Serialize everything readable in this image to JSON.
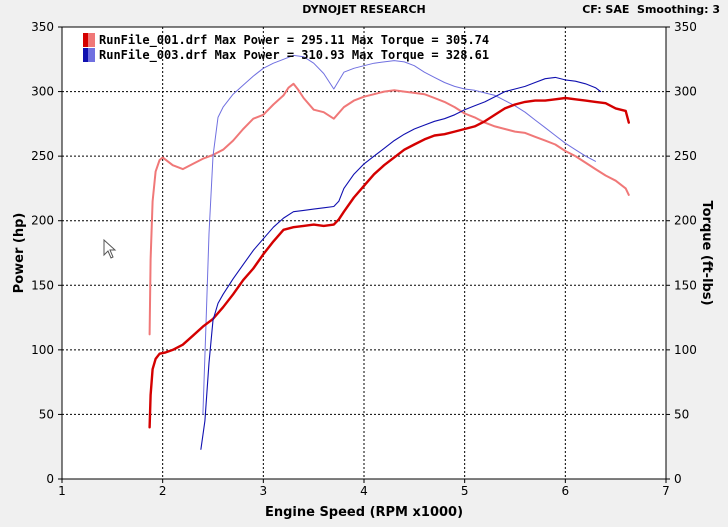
{
  "header": {
    "title": "DYNOJET RESEARCH",
    "cf_label": "CF: SAE",
    "smoothing_label": "Smoothing: 3"
  },
  "chart_data": {
    "type": "line",
    "xlabel": "Engine Speed (RPM x1000)",
    "ylabel": "Power (hp)",
    "y2label": "Torque (ft-lbs)",
    "xlim": [
      1,
      7
    ],
    "ylim": [
      0,
      350
    ],
    "y2lim": [
      0,
      350
    ],
    "x_ticks": [
      "1",
      "2",
      "3",
      "4",
      "5",
      "6",
      "7"
    ],
    "y_ticks": [
      "0",
      "50",
      "100",
      "150",
      "200",
      "250",
      "300",
      "350"
    ],
    "y2_ticks": [
      "0",
      "50",
      "100",
      "150",
      "200",
      "250",
      "300",
      "350"
    ],
    "grid": true,
    "legend": [
      "RunFile_001.drf Max Power = 295.11 Max Torque = 305.74",
      "RunFile_003.drf Max Power = 310.93 Max Torque = 328.61"
    ],
    "series": [
      {
        "name": "RunFile_001.drf Power",
        "run": "RunFile_001.drf",
        "measure": "power",
        "axis": "left",
        "color": "#d40000",
        "width": 2.4,
        "x": [
          1.87,
          1.88,
          1.9,
          1.93,
          1.97,
          2.03,
          2.1,
          2.2,
          2.3,
          2.4,
          2.5,
          2.6,
          2.7,
          2.8,
          2.9,
          3.0,
          3.1,
          3.2,
          3.3,
          3.4,
          3.5,
          3.6,
          3.7,
          3.75,
          3.8,
          3.9,
          4.0,
          4.1,
          4.2,
          4.3,
          4.4,
          4.5,
          4.6,
          4.7,
          4.8,
          4.9,
          5.0,
          5.1,
          5.2,
          5.3,
          5.4,
          5.5,
          5.6,
          5.7,
          5.8,
          5.9,
          6.0,
          6.1,
          6.2,
          6.3,
          6.4,
          6.5,
          6.6,
          6.63
        ],
        "y": [
          40,
          65,
          85,
          93,
          97,
          98,
          100,
          104,
          111,
          118,
          124,
          133,
          143,
          154,
          163,
          174,
          184,
          193,
          195,
          196,
          197,
          196,
          197,
          201,
          207,
          218,
          227,
          236,
          243,
          249,
          255,
          259,
          263,
          266,
          267,
          269,
          271,
          273,
          277,
          282,
          287,
          290,
          292,
          293,
          293,
          294,
          295,
          294,
          293,
          292,
          291,
          287,
          285,
          276
        ]
      },
      {
        "name": "RunFile_001.drf Torque",
        "run": "RunFile_001.drf",
        "measure": "torque",
        "axis": "right",
        "color": "#f07878",
        "width": 2,
        "x": [
          1.87,
          1.88,
          1.9,
          1.93,
          1.97,
          2.0,
          2.05,
          2.1,
          2.2,
          2.3,
          2.4,
          2.5,
          2.6,
          2.7,
          2.8,
          2.9,
          3.0,
          3.1,
          3.2,
          3.25,
          3.3,
          3.35,
          3.4,
          3.5,
          3.6,
          3.7,
          3.8,
          3.9,
          4.0,
          4.1,
          4.2,
          4.3,
          4.4,
          4.5,
          4.6,
          4.7,
          4.8,
          4.9,
          5.0,
          5.1,
          5.2,
          5.3,
          5.4,
          5.5,
          5.6,
          5.7,
          5.8,
          5.9,
          6.0,
          6.1,
          6.2,
          6.3,
          6.4,
          6.5,
          6.6,
          6.63
        ],
        "y": [
          112,
          170,
          215,
          238,
          247,
          249,
          246,
          243,
          240,
          244,
          248,
          251,
          255,
          262,
          271,
          279,
          282,
          290,
          297,
          303,
          306,
          301,
          295,
          286,
          284,
          279,
          288,
          293,
          296,
          298,
          300,
          301,
          300,
          299,
          298,
          295,
          292,
          288,
          283,
          280,
          276,
          273,
          271,
          269,
          268,
          265,
          262,
          259,
          254,
          250,
          245,
          240,
          235,
          231,
          225,
          220
        ]
      },
      {
        "name": "RunFile_003.drf Power",
        "run": "RunFile_003.drf",
        "measure": "power",
        "axis": "left",
        "color": "#1010b0",
        "width": 1.1,
        "x": [
          2.38,
          2.42,
          2.46,
          2.5,
          2.55,
          2.6,
          2.7,
          2.8,
          2.9,
          3.0,
          3.1,
          3.2,
          3.3,
          3.4,
          3.5,
          3.6,
          3.7,
          3.75,
          3.8,
          3.9,
          4.0,
          4.1,
          4.2,
          4.3,
          4.4,
          4.5,
          4.6,
          4.7,
          4.8,
          4.9,
          5.0,
          5.1,
          5.2,
          5.3,
          5.4,
          5.5,
          5.6,
          5.7,
          5.8,
          5.9,
          6.0,
          6.1,
          6.2,
          6.3,
          6.35
        ],
        "y": [
          23,
          45,
          90,
          123,
          136,
          143,
          155,
          166,
          177,
          186,
          195,
          202,
          207,
          208,
          209,
          210,
          211,
          215,
          225,
          236,
          244,
          250,
          256,
          262,
          267,
          271,
          274,
          277,
          279,
          282,
          286,
          289,
          292,
          296,
          300,
          302,
          304,
          307,
          310,
          311,
          309,
          308,
          306,
          303,
          300
        ]
      },
      {
        "name": "RunFile_003.drf Torque",
        "run": "RunFile_003.drf",
        "measure": "torque",
        "axis": "right",
        "color": "#7070e0",
        "width": 1,
        "x": [
          2.4,
          2.43,
          2.46,
          2.5,
          2.55,
          2.6,
          2.7,
          2.8,
          2.9,
          3.0,
          3.1,
          3.2,
          3.3,
          3.4,
          3.5,
          3.6,
          3.7,
          3.8,
          3.9,
          4.0,
          4.1,
          4.2,
          4.3,
          4.4,
          4.5,
          4.6,
          4.7,
          4.8,
          4.9,
          5.0,
          5.1,
          5.2,
          5.3,
          5.4,
          5.5,
          5.6,
          5.7,
          5.8,
          5.9,
          6.0,
          6.1,
          6.2,
          6.3
        ],
        "y": [
          50,
          120,
          190,
          250,
          280,
          288,
          298,
          305,
          312,
          318,
          322,
          325,
          328,
          327,
          322,
          314,
          302,
          315,
          318,
          320,
          322,
          323,
          324,
          323,
          320,
          315,
          311,
          307,
          304,
          302,
          301,
          299,
          297,
          293,
          289,
          284,
          278,
          272,
          266,
          260,
          255,
          250,
          246
        ]
      }
    ]
  }
}
